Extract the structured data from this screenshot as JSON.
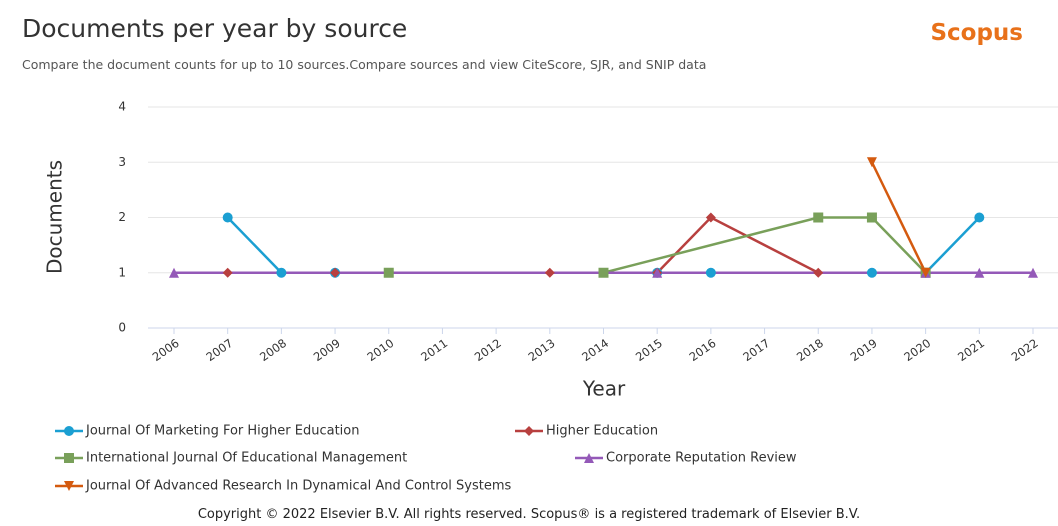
{
  "chart_data": {
    "type": "line",
    "title": "Documents per year by source",
    "brand": "Scopus",
    "subtitle": "Compare the document counts for up to 10 sources.Compare sources and view CiteScore, SJR, and SNIP data",
    "xlabel": "Year",
    "ylabel": "Documents",
    "copyright": "Copyright © 2022 Elsevier B.V. All rights reserved. Scopus® is a registered trademark of Elsevier B.V.",
    "xlim": [
      2006,
      2022
    ],
    "xticks": [
      2006,
      2007,
      2008,
      2009,
      2010,
      2011,
      2012,
      2013,
      2014,
      2015,
      2016,
      2017,
      2018,
      2019,
      2020,
      2021,
      2022
    ],
    "ylim": [
      0,
      4
    ],
    "yticks": [
      0,
      1,
      2,
      3,
      4
    ],
    "grid": true,
    "series": [
      {
        "name": "Journal Of Marketing For Higher Education",
        "color": "#1b9fd2",
        "marker": "circle",
        "x": [
          2007,
          2008,
          2009,
          2015,
          2016,
          2019,
          2020,
          2021
        ],
        "values": [
          2,
          1,
          1,
          1,
          1,
          1,
          1,
          2
        ]
      },
      {
        "name": "Higher Education",
        "color": "#b8403f",
        "marker": "diamond",
        "x": [
          2007,
          2009,
          2013,
          2015,
          2016,
          2018
        ],
        "values": [
          1,
          1,
          1,
          1,
          2,
          1
        ]
      },
      {
        "name": "International Journal Of Educational Management",
        "color": "#79a05a",
        "marker": "square",
        "x": [
          2010,
          2014,
          2018,
          2019,
          2020
        ],
        "values": [
          1,
          1,
          2,
          2,
          1
        ]
      },
      {
        "name": "Corporate Reputation Review",
        "color": "#9459b8",
        "marker": "triangle",
        "x": [
          2006,
          2015,
          2020,
          2021,
          2022
        ],
        "values": [
          1,
          1,
          1,
          1,
          1
        ]
      },
      {
        "name": "Journal Of Advanced Research In Dynamical And Control Systems",
        "color": "#d45a0f",
        "marker": "triangle-down",
        "x": [
          2019,
          2020
        ],
        "values": [
          3,
          1
        ]
      }
    ]
  }
}
